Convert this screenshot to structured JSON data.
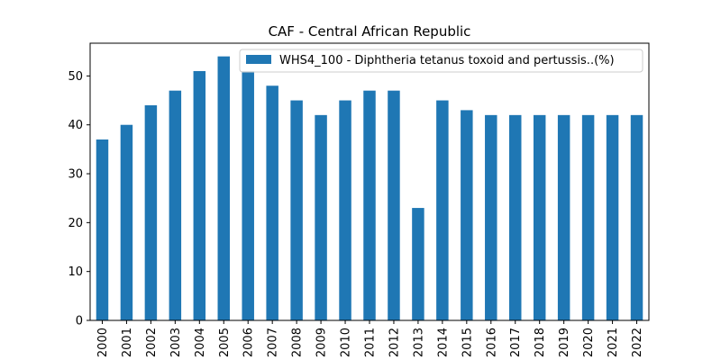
{
  "chart_data": {
    "type": "bar",
    "title": "CAF - Central African Republic",
    "xlabel": "",
    "ylabel": "",
    "categories": [
      "2000",
      "2001",
      "2002",
      "2003",
      "2004",
      "2005",
      "2006",
      "2007",
      "2008",
      "2009",
      "2010",
      "2011",
      "2012",
      "2013",
      "2014",
      "2015",
      "2016",
      "2017",
      "2018",
      "2019",
      "2020",
      "2021",
      "2022"
    ],
    "series": [
      {
        "name": "WHS4_100 - Diphtheria tetanus toxoid and pertussis..(%)",
        "values": [
          37,
          40,
          44,
          47,
          51,
          54,
          51,
          48,
          45,
          42,
          45,
          47,
          47,
          23,
          45,
          43,
          42,
          42,
          42,
          42,
          42,
          42,
          42
        ],
        "color": "#1f77b4"
      }
    ],
    "ylim": [
      0,
      56.7
    ],
    "yticks": [
      0,
      10,
      20,
      30,
      40,
      50
    ],
    "grid": false,
    "legend_position": "top-right"
  }
}
